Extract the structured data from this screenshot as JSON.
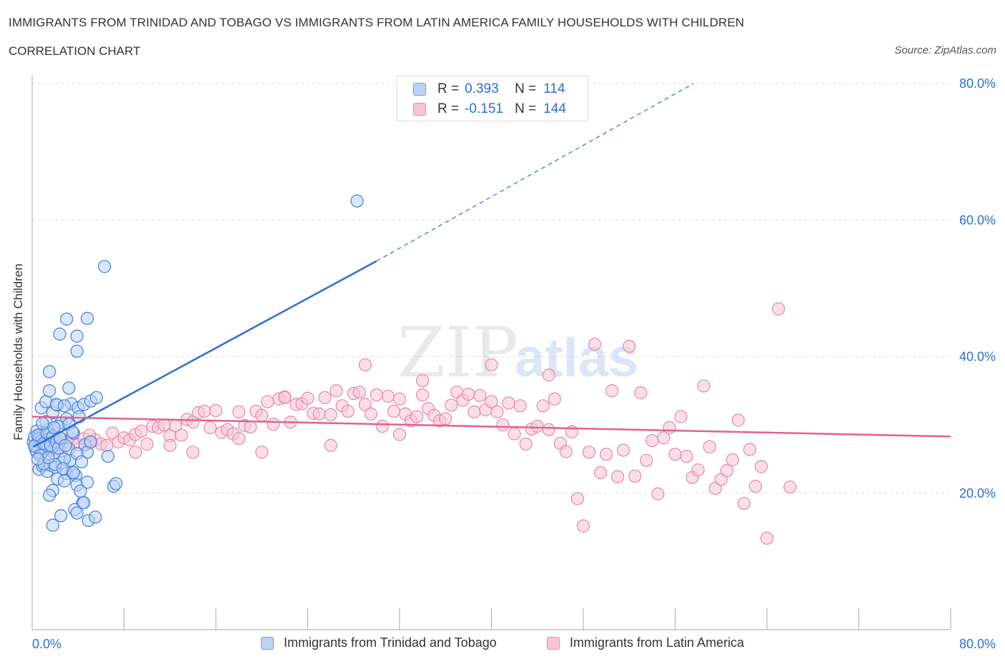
{
  "header": {
    "title": "IMMIGRANTS FROM TRINIDAD AND TOBAGO VS IMMIGRANTS FROM LATIN AMERICA FAMILY HOUSEHOLDS WITH CHILDREN",
    "subtitle": "CORRELATION CHART",
    "source": "Source: ZipAtlas.com"
  },
  "watermark": {
    "zip": "ZIP",
    "atlas": "atlas"
  },
  "legend_top": {
    "rows": [
      {
        "r_label": "R =",
        "r_value": "0.393",
        "n_label": "N =",
        "n_value": "114"
      },
      {
        "r_label": "R =",
        "r_value": "-0.151",
        "n_label": "N =",
        "n_value": "144"
      }
    ]
  },
  "colors": {
    "blue_fill": "#bcd3f7",
    "blue_stroke": "#4f86dc",
    "blue_line": "#2b6fd1",
    "pink_fill": "#f8c5d6",
    "pink_stroke": "#e68fae",
    "pink_line": "#e2628d",
    "axis_text": "#2b6fd1",
    "grid": "#dddddd"
  },
  "chart_data": {
    "type": "scatter",
    "title": "IMMIGRANTS FROM TRINIDAD AND TOBAGO VS IMMIGRANTS FROM LATIN AMERICA FAMILY HOUSEHOLDS WITH CHILDREN",
    "ylabel": "Family Households with Children",
    "xlim": [
      0,
      80
    ],
    "ylim": [
      0,
      80
    ],
    "x_tick_labels": [
      "0.0%",
      "80.0%"
    ],
    "y_ticks": [
      20,
      40,
      60,
      80
    ],
    "y_tick_labels": [
      "20.0%",
      "40.0%",
      "60.0%",
      "80.0%"
    ],
    "grid": true,
    "legend_position": "bottom",
    "series": [
      {
        "name": "Immigrants from Trinidad and Tobago",
        "color": "blue",
        "R": 0.393,
        "N": 114,
        "trend": {
          "x0": 0.1,
          "y0": 26.8,
          "x1": 30,
          "y1": 54,
          "dash_to_x": 57.6,
          "dash_to_y": 80
        },
        "points": [
          [
            0.1,
            27.5
          ],
          [
            0.2,
            28.2
          ],
          [
            0.3,
            26.4
          ],
          [
            0.4,
            29.1
          ],
          [
            0.5,
            27.0
          ],
          [
            0.6,
            26.7
          ],
          [
            0.7,
            28.6
          ],
          [
            0.8,
            25.8
          ],
          [
            0.9,
            27.9
          ],
          [
            1.0,
            26.2
          ],
          [
            1.1,
            28.9
          ],
          [
            1.2,
            27.4
          ],
          [
            1.3,
            26.8
          ],
          [
            1.4,
            29.3
          ],
          [
            1.5,
            27.7
          ],
          [
            1.6,
            26.3
          ],
          [
            1.7,
            28.1
          ],
          [
            1.8,
            27.2
          ],
          [
            1.9,
            25.9
          ],
          [
            2.0,
            28.4
          ],
          [
            0.3,
            27.1
          ],
          [
            0.6,
            28.0
          ],
          [
            0.9,
            26.9
          ],
          [
            1.2,
            27.8
          ],
          [
            1.5,
            28.6
          ],
          [
            0.4,
            26.0
          ],
          [
            0.8,
            27.6
          ],
          [
            1.1,
            26.5
          ],
          [
            1.4,
            27.9
          ],
          [
            1.7,
            26.7
          ],
          [
            0.2,
            26.9
          ],
          [
            0.5,
            28.5
          ],
          [
            1.0,
            27.3
          ],
          [
            1.3,
            28.8
          ],
          [
            1.6,
            27.0
          ],
          [
            0.7,
            25.5
          ],
          [
            1.8,
            28.3
          ],
          [
            2.1,
            27.5
          ],
          [
            2.3,
            26.6
          ],
          [
            2.5,
            28.0
          ],
          [
            0.6,
            23.5
          ],
          [
            0.9,
            24.0
          ],
          [
            1.3,
            23.2
          ],
          [
            1.6,
            24.1
          ],
          [
            2.0,
            23.8
          ],
          [
            2.2,
            22.1
          ],
          [
            2.6,
            24.5
          ],
          [
            3.0,
            22.9
          ],
          [
            3.3,
            24.8
          ],
          [
            3.5,
            23.1
          ],
          [
            3.8,
            22.6
          ],
          [
            2.8,
            21.8
          ],
          [
            3.9,
            21.2
          ],
          [
            4.8,
            21.6
          ],
          [
            1.8,
            20.4
          ],
          [
            1.5,
            19.7
          ],
          [
            4.2,
            20.3
          ],
          [
            7.1,
            21.0
          ],
          [
            7.3,
            21.4
          ],
          [
            4.4,
            18.6
          ],
          [
            3.7,
            17.6
          ],
          [
            2.5,
            16.7
          ],
          [
            4.5,
            18.6
          ],
          [
            1.8,
            15.3
          ],
          [
            3.9,
            17.1
          ],
          [
            4.9,
            16.0
          ],
          [
            5.5,
            16.5
          ],
          [
            1.2,
            30.5
          ],
          [
            1.8,
            31.8
          ],
          [
            2.2,
            32.9
          ],
          [
            2.5,
            30.3
          ],
          [
            3.0,
            30.9
          ],
          [
            3.4,
            33.1
          ],
          [
            4.0,
            32.5
          ],
          [
            4.5,
            33.0
          ],
          [
            5.1,
            33.5
          ],
          [
            5.6,
            34.0
          ],
          [
            0.8,
            32.5
          ],
          [
            1.2,
            33.4
          ],
          [
            1.5,
            35.0
          ],
          [
            2.1,
            33.0
          ],
          [
            3.2,
            35.4
          ],
          [
            1.5,
            37.8
          ],
          [
            2.3,
            29.8
          ],
          [
            3.2,
            30.1
          ],
          [
            3.6,
            28.8
          ],
          [
            4.6,
            27.1
          ],
          [
            4.8,
            26.0
          ],
          [
            5.1,
            27.5
          ],
          [
            6.6,
            25.4
          ],
          [
            3.2,
            26.5
          ],
          [
            3.9,
            25.8
          ],
          [
            2.8,
            25.0
          ],
          [
            2.0,
            24.2
          ],
          [
            3.0,
            45.5
          ],
          [
            4.8,
            45.6
          ],
          [
            2.4,
            43.3
          ],
          [
            3.9,
            43.0
          ],
          [
            3.9,
            40.8
          ],
          [
            6.3,
            53.2
          ],
          [
            28.3,
            62.8
          ],
          [
            1.0,
            24.3
          ],
          [
            1.4,
            25.2
          ],
          [
            2.7,
            23.6
          ],
          [
            3.6,
            23.0
          ],
          [
            0.5,
            25.0
          ],
          [
            0.9,
            30.2
          ],
          [
            2.8,
            32.8
          ],
          [
            3.5,
            29.0
          ],
          [
            4.1,
            31.2
          ],
          [
            1.9,
            29.6
          ],
          [
            2.4,
            28.1
          ],
          [
            2.9,
            27.0
          ],
          [
            4.3,
            24.6
          ]
        ]
      },
      {
        "name": "Immigrants from Latin America",
        "color": "pink",
        "R": -0.151,
        "N": 144,
        "trend": {
          "x0": 0,
          "y0": 31.2,
          "x1": 80,
          "y1": 28.3
        },
        "points": [
          [
            0.5,
            27.2
          ],
          [
            1.0,
            26.5
          ],
          [
            1.5,
            27.8
          ],
          [
            0.8,
            25.9
          ],
          [
            2.0,
            27.0
          ],
          [
            2.5,
            26.2
          ],
          [
            3.0,
            27.5
          ],
          [
            3.5,
            27.9
          ],
          [
            4.0,
            27.1
          ],
          [
            4.5,
            28.0
          ],
          [
            5.0,
            27.4
          ],
          [
            5.5,
            27.8
          ],
          [
            6.0,
            27.2
          ],
          [
            6.5,
            27.0
          ],
          [
            7.0,
            28.8
          ],
          [
            7.5,
            27.5
          ],
          [
            8.0,
            28.1
          ],
          [
            8.5,
            27.8
          ],
          [
            9.0,
            28.6
          ],
          [
            9.5,
            29.1
          ],
          [
            10.0,
            27.2
          ],
          [
            10.5,
            29.8
          ],
          [
            11.0,
            29.6
          ],
          [
            11.5,
            30.0
          ],
          [
            12.0,
            28.4
          ],
          [
            12.5,
            29.9
          ],
          [
            13.0,
            28.5
          ],
          [
            13.5,
            30.8
          ],
          [
            14.0,
            30.4
          ],
          [
            14.5,
            31.8
          ],
          [
            15.0,
            32.0
          ],
          [
            15.5,
            29.6
          ],
          [
            16.0,
            32.1
          ],
          [
            16.5,
            28.9
          ],
          [
            17.0,
            29.3
          ],
          [
            17.5,
            28.7
          ],
          [
            18.0,
            31.9
          ],
          [
            18.5,
            29.9
          ],
          [
            19.0,
            29.7
          ],
          [
            19.5,
            32.0
          ],
          [
            20.0,
            31.4
          ],
          [
            20.5,
            33.4
          ],
          [
            21.0,
            30.1
          ],
          [
            21.5,
            33.8
          ],
          [
            22.0,
            34.1
          ],
          [
            22.5,
            30.4
          ],
          [
            23.0,
            33.0
          ],
          [
            23.5,
            33.1
          ],
          [
            24.0,
            33.9
          ],
          [
            24.5,
            31.7
          ],
          [
            25.0,
            31.6
          ],
          [
            25.5,
            34.0
          ],
          [
            26.0,
            31.5
          ],
          [
            26.5,
            35.0
          ],
          [
            27.0,
            32.8
          ],
          [
            27.5,
            32.0
          ],
          [
            28.0,
            34.6
          ],
          [
            28.5,
            34.8
          ],
          [
            29.0,
            33.0
          ],
          [
            29.5,
            31.6
          ],
          [
            30.0,
            34.4
          ],
          [
            30.5,
            29.8
          ],
          [
            31.0,
            34.2
          ],
          [
            31.5,
            32.0
          ],
          [
            32.0,
            33.8
          ],
          [
            32.5,
            31.6
          ],
          [
            33.0,
            30.6
          ],
          [
            33.5,
            31.2
          ],
          [
            34.0,
            34.4
          ],
          [
            34.5,
            32.4
          ],
          [
            35.0,
            31.4
          ],
          [
            35.5,
            30.6
          ],
          [
            36.0,
            30.9
          ],
          [
            36.5,
            32.9
          ],
          [
            37.0,
            34.8
          ],
          [
            37.5,
            33.6
          ],
          [
            38.0,
            34.5
          ],
          [
            38.5,
            31.9
          ],
          [
            39.0,
            34.3
          ],
          [
            39.5,
            32.2
          ],
          [
            40.0,
            33.4
          ],
          [
            40.5,
            31.9
          ],
          [
            41.0,
            30.0
          ],
          [
            41.5,
            33.2
          ],
          [
            42.0,
            28.7
          ],
          [
            42.5,
            32.8
          ],
          [
            43.0,
            27.2
          ],
          [
            43.5,
            29.4
          ],
          [
            44.0,
            29.8
          ],
          [
            44.5,
            32.8
          ],
          [
            45.0,
            29.3
          ],
          [
            45.5,
            33.8
          ],
          [
            46.0,
            27.3
          ],
          [
            46.5,
            26.1
          ],
          [
            47.0,
            29.0
          ],
          [
            47.5,
            19.2
          ],
          [
            48.0,
            15.2
          ],
          [
            48.5,
            26.0
          ],
          [
            49.0,
            41.8
          ],
          [
            49.5,
            23.0
          ],
          [
            50.0,
            25.7
          ],
          [
            50.5,
            35.0
          ],
          [
            51.0,
            22.4
          ],
          [
            51.5,
            26.3
          ],
          [
            52.0,
            41.5
          ],
          [
            52.5,
            22.5
          ],
          [
            53.0,
            34.7
          ],
          [
            53.5,
            24.8
          ],
          [
            54.0,
            27.7
          ],
          [
            54.5,
            19.9
          ],
          [
            55.0,
            28.1
          ],
          [
            55.5,
            29.6
          ],
          [
            56.0,
            25.7
          ],
          [
            56.5,
            31.2
          ],
          [
            57.0,
            25.4
          ],
          [
            57.5,
            22.3
          ],
          [
            58.0,
            23.4
          ],
          [
            58.5,
            35.7
          ],
          [
            59.0,
            26.8
          ],
          [
            59.5,
            20.7
          ],
          [
            60.0,
            22.0
          ],
          [
            60.5,
            23.3
          ],
          [
            61.0,
            24.9
          ],
          [
            61.5,
            30.7
          ],
          [
            62.0,
            18.5
          ],
          [
            62.5,
            26.4
          ],
          [
            63.0,
            21.0
          ],
          [
            63.5,
            23.9
          ],
          [
            64.0,
            13.4
          ],
          [
            65.0,
            47.0
          ],
          [
            66.0,
            20.9
          ],
          [
            26.0,
            27.0
          ],
          [
            20.0,
            26.0
          ],
          [
            14.0,
            26.0
          ],
          [
            5.0,
            28.5
          ],
          [
            9.0,
            26.0
          ],
          [
            12.0,
            27.0
          ],
          [
            18.0,
            28.0
          ],
          [
            22.0,
            34.0
          ],
          [
            29.0,
            38.8
          ],
          [
            34.0,
            36.5
          ],
          [
            45.0,
            37.3
          ],
          [
            40.0,
            38.8
          ],
          [
            32.0,
            28.6
          ]
        ]
      }
    ]
  },
  "legend_bottom": {
    "items": [
      {
        "label": "Immigrants from Trinidad and Tobago"
      },
      {
        "label": "Immigrants from Latin America"
      }
    ]
  }
}
